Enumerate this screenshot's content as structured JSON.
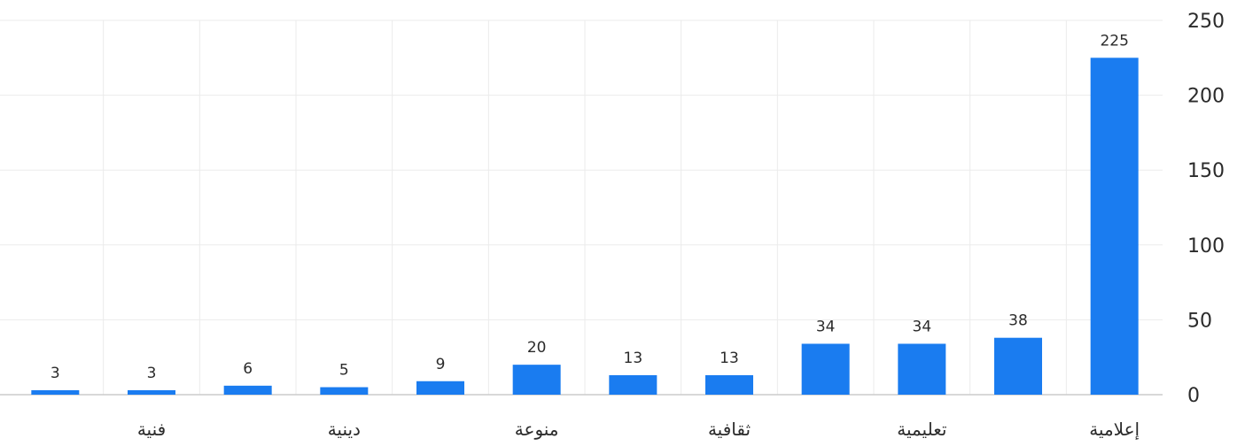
{
  "chart_data": {
    "type": "bar",
    "title": "",
    "xlabel": "",
    "ylabel": "",
    "ylim": [
      0,
      250
    ],
    "yticks": [
      0,
      50,
      100,
      150,
      200,
      250
    ],
    "grid": true,
    "direction": "rtl",
    "categories": [
      "إعلامية",
      "",
      "تعليمية",
      "",
      "ثقافية",
      "",
      "منوعة",
      "",
      "دينية",
      "",
      "فنية",
      ""
    ],
    "values": [
      225,
      38,
      34,
      34,
      13,
      13,
      20,
      9,
      5,
      6,
      3,
      3
    ],
    "bar_color": "#1a7cf0",
    "grid_color": "#ebebeb",
    "axis_color": "#cccccc"
  }
}
